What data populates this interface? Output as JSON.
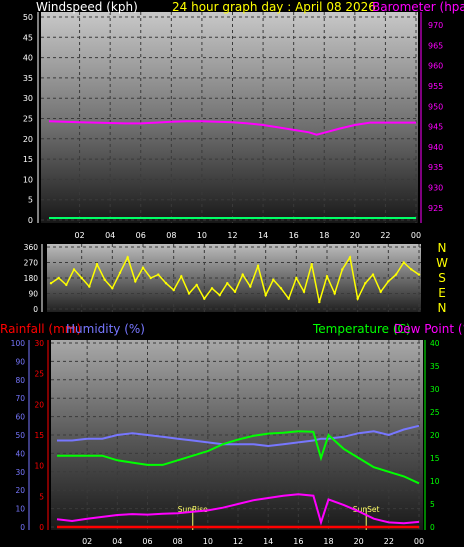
{
  "header": {
    "wind_title": "Windspeed (kph)",
    "graph_title": "24 hour graph day : April 08 2026",
    "baro_title": "Barometer (hpa"
  },
  "colors": {
    "wind": "#ffffff",
    "title": "#ffff00",
    "baro": "#ff00ff",
    "dir": "#ffff00",
    "rain": "#ff0000",
    "hum": "#7777ff",
    "temp": "#00ff00",
    "dew": "#ff00ff",
    "sun": "#ffff66"
  },
  "x_ticks": [
    "02",
    "04",
    "06",
    "08",
    "10",
    "12",
    "14",
    "16",
    "18",
    "20",
    "22",
    "00"
  ],
  "chart_data": [
    {
      "type": "line",
      "title": "24 hour graph day : April 08 2026",
      "y_left_label": "Windspeed (kph)",
      "y_left_ticks": [
        "50",
        "45",
        "40",
        "35",
        "30",
        "25",
        "20",
        "15",
        "10",
        "5",
        "0"
      ],
      "y_left_range": [
        0,
        50
      ],
      "y_right_label": "Barometer (hpa",
      "y_right_ticks": [
        "970",
        "965",
        "960",
        "955",
        "950",
        "945",
        "940",
        "935",
        "930",
        "925"
      ],
      "y_right_range": [
        922,
        972
      ],
      "x": [
        0,
        1,
        2,
        3,
        4,
        5,
        6,
        7,
        8,
        9,
        10,
        11,
        12,
        13,
        14,
        15,
        16,
        17,
        17.5,
        18,
        19,
        20,
        21,
        22,
        23,
        24
      ],
      "series": [
        {
          "values": [
            946.3,
            946.2,
            946.1,
            946.0,
            945.9,
            945.8,
            945.8,
            946.0,
            946.2,
            946.3,
            946.3,
            946.2,
            946.1,
            945.8,
            945.4,
            944.8,
            944.2,
            943.6,
            943.0,
            943.5,
            944.5,
            945.4,
            946.0,
            946.0,
            946.0,
            946.0
          ]
        },
        {
          "values": [
            0.5,
            0.5,
            0.5,
            0.5,
            0.5,
            0.5,
            0.5,
            0.5,
            0.5,
            0.5,
            0.5,
            0.5,
            0.5,
            0.5,
            0.5,
            0.5,
            0.5,
            0.5,
            0.5,
            0.5,
            0.5,
            0.5,
            0.5,
            0.5,
            0.5,
            0.5
          ]
        }
      ],
      "grid": true
    },
    {
      "type": "scatter",
      "ylabel_ticks": [
        "360",
        "270",
        "180",
        "90",
        "0"
      ],
      "y_range": [
        0,
        360
      ],
      "compass": [
        "N",
        "W",
        "S",
        "E",
        "N"
      ],
      "x": [
        0,
        0.5,
        1,
        1.5,
        2,
        2.5,
        3,
        3.5,
        4,
        4.5,
        5,
        5.5,
        6,
        6.5,
        7,
        7.5,
        8,
        8.5,
        9,
        9.5,
        10,
        10.5,
        11,
        11.5,
        12,
        12.5,
        13,
        13.5,
        14,
        14.5,
        15,
        15.5,
        16,
        16.5,
        17,
        17.5,
        18,
        18.5,
        19,
        19.5,
        20,
        20.5,
        21,
        21.5,
        22,
        22.5,
        23,
        23.5,
        24
      ],
      "values": [
        150,
        180,
        140,
        230,
        180,
        130,
        260,
        170,
        120,
        210,
        300,
        160,
        240,
        180,
        200,
        150,
        110,
        190,
        90,
        140,
        60,
        120,
        80,
        150,
        100,
        200,
        130,
        250,
        80,
        170,
        120,
        60,
        180,
        100,
        260,
        40,
        190,
        90,
        230,
        300,
        60,
        150,
        200,
        100,
        160,
        200,
        270,
        230,
        200
      ],
      "grid": true
    },
    {
      "type": "line",
      "ylabel_rain": "Rainfall (mm)",
      "ylabel_hum": "Humidity (%)",
      "ylabel_temp": "Temperature (C)",
      "ylabel_dew": "Dew Point (°",
      "rain_ticks": [
        "30",
        "25",
        "20",
        "15",
        "10",
        "5",
        "0"
      ],
      "hum_ticks": [
        "100",
        "90",
        "80",
        "70",
        "60",
        "50",
        "40",
        "30",
        "20",
        "10",
        "0"
      ],
      "temp_ticks": [
        "40",
        "35",
        "30",
        "25",
        "20",
        "15",
        "10",
        "5",
        "0"
      ],
      "annotations": [
        "SunRise",
        "SunSet"
      ],
      "x": [
        0,
        1,
        2,
        3,
        4,
        5,
        6,
        7,
        8,
        9,
        10,
        11,
        12,
        13,
        14,
        15,
        16,
        17,
        17.5,
        18,
        19,
        20,
        21,
        22,
        23,
        24
      ],
      "series": [
        {
          "name": "Humidity (%)",
          "values": [
            47,
            47,
            48,
            48,
            50,
            51,
            50,
            49,
            48,
            47,
            46,
            45,
            45,
            45,
            44,
            45,
            46,
            47,
            48,
            48,
            49,
            51,
            52,
            50,
            53,
            55
          ]
        },
        {
          "name": "Temperature (C)",
          "values": [
            15.5,
            15.5,
            15.5,
            15.5,
            14.5,
            14,
            13.5,
            13.5,
            14.5,
            15.5,
            16.5,
            18,
            19,
            19.8,
            20.3,
            20.5,
            20.8,
            20.7,
            15,
            20,
            17,
            15,
            13,
            12,
            11,
            9.5
          ]
        },
        {
          "name": "Dew Point (°",
          "values": [
            1.7,
            1.3,
            1.8,
            2.2,
            2.6,
            2.8,
            2.7,
            2.9,
            3.0,
            3.3,
            3.6,
            4.2,
            5.0,
            5.8,
            6.3,
            6.8,
            7.1,
            6.8,
            1.0,
            6.0,
            4.8,
            3.4,
            1.8,
            1.0,
            0.8,
            1.1
          ]
        },
        {
          "name": "Rainfall (mm)",
          "values": [
            0,
            0,
            0,
            0,
            0,
            0,
            0,
            0,
            0,
            0,
            0,
            0,
            0,
            0,
            0,
            0,
            0,
            0,
            0,
            0,
            0,
            0,
            0,
            0,
            0,
            0
          ]
        }
      ],
      "grid": true
    }
  ]
}
